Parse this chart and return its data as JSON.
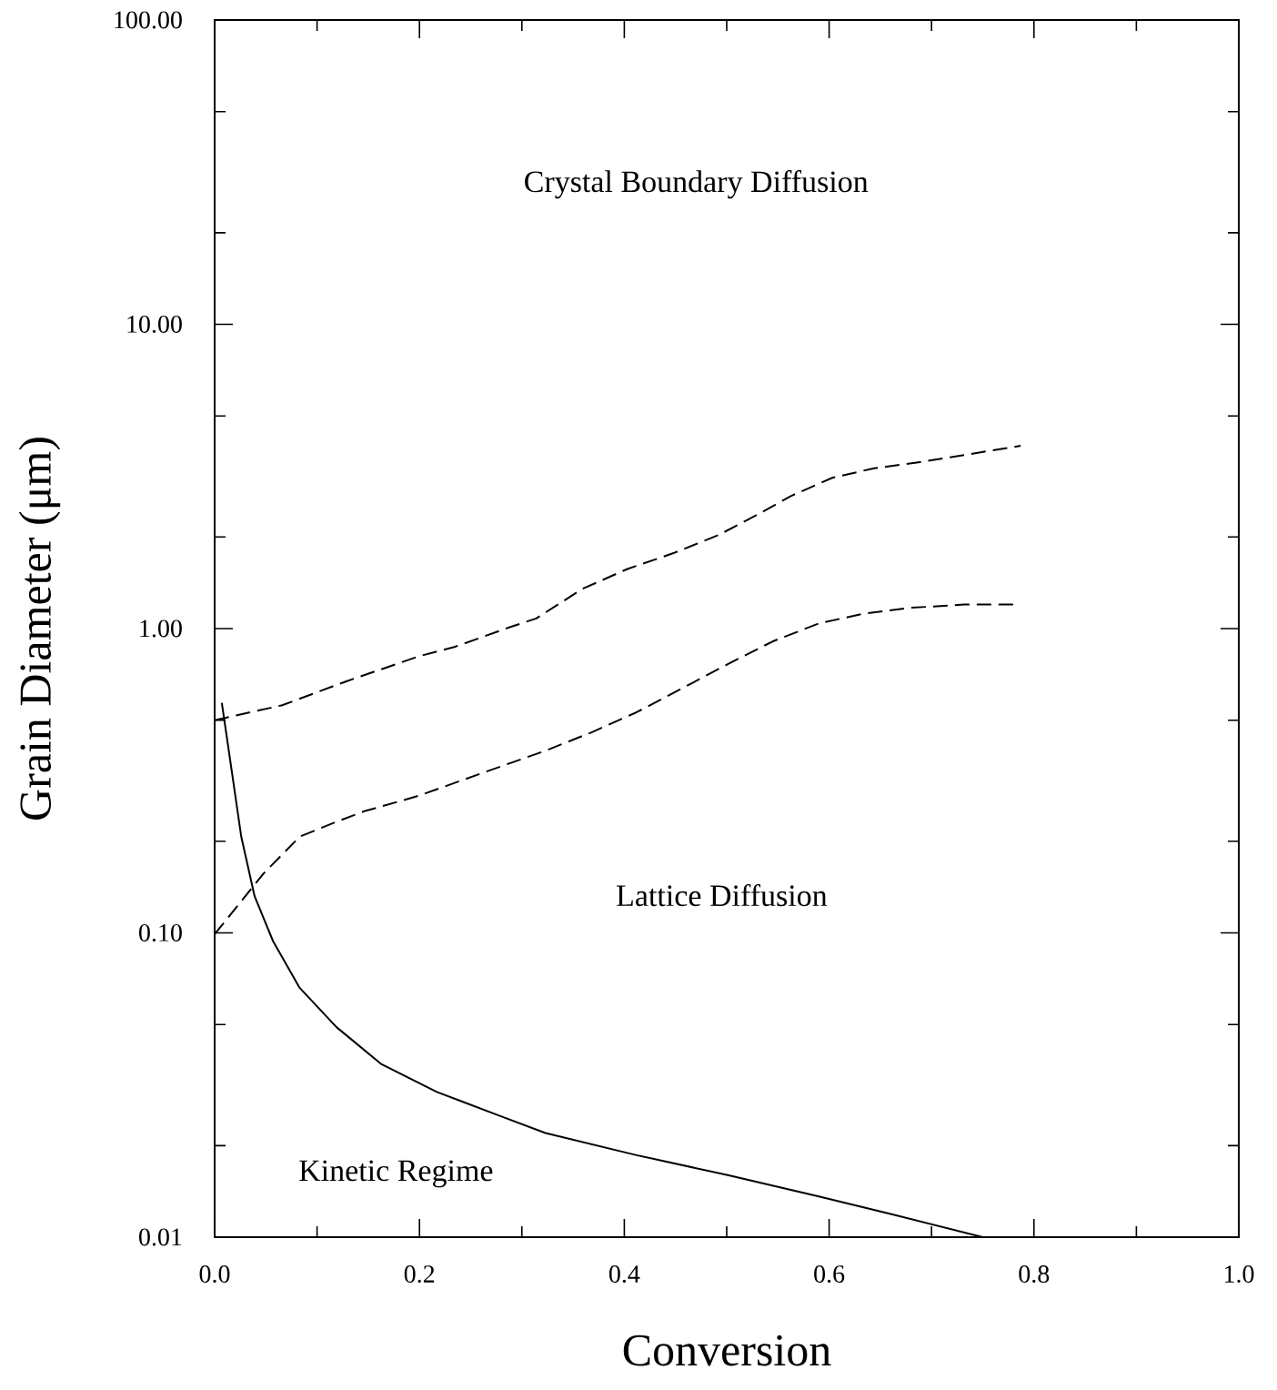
{
  "chart_data": {
    "type": "line",
    "xlabel": "Conversion",
    "ylabel": "Grain Diameter (μm)",
    "log": "y",
    "xlim": [
      0,
      1
    ],
    "ylim": [
      0.01,
      100
    ],
    "xticks": [
      {
        "value": 0,
        "label": "0.0"
      },
      {
        "value": 0.1,
        "label": null
      },
      {
        "value": 0.2,
        "label": "0.2"
      },
      {
        "value": 0.3,
        "label": null
      },
      {
        "value": 0.4,
        "label": "0.4"
      },
      {
        "value": 0.5,
        "label": null
      },
      {
        "value": 0.6,
        "label": "0.6"
      },
      {
        "value": 0.7,
        "label": null
      },
      {
        "value": 0.8,
        "label": "0.8"
      },
      {
        "value": 0.9,
        "label": null
      },
      {
        "value": 1,
        "label": "1.0"
      }
    ],
    "yticks": [
      {
        "value": 0.01,
        "label": "0.01"
      },
      {
        "value": 0.02,
        "label": null
      },
      {
        "value": 0.05,
        "label": null
      },
      {
        "value": 0.1,
        "label": "0.10"
      },
      {
        "value": 0.2,
        "label": null
      },
      {
        "value": 0.5,
        "label": null
      },
      {
        "value": 1,
        "label": "1.00"
      },
      {
        "value": 2,
        "label": null
      },
      {
        "value": 5,
        "label": null
      },
      {
        "value": 10,
        "label": "10.00"
      },
      {
        "value": 20,
        "label": null
      },
      {
        "value": 50,
        "label": null
      },
      {
        "value": 100,
        "label": "100.00"
      }
    ],
    "series": [
      {
        "color": "#000000",
        "line_style": "dashed",
        "x": [
          0,
          0.066,
          0.128,
          0.199,
          0.234,
          0.288,
          0.314,
          0.359,
          0.403,
          0.448,
          0.492,
          0.528,
          0.563,
          0.603,
          0.643,
          0.687,
          0.732,
          0.787
        ],
        "values": [
          0.5,
          0.56,
          0.67,
          0.81,
          0.87,
          1.01,
          1.08,
          1.35,
          1.57,
          1.77,
          2.03,
          2.35,
          2.73,
          3.13,
          3.36,
          3.52,
          3.72,
          3.99
        ]
      },
      {
        "color": "#000000",
        "line_style": "dashed",
        "x": [
          0,
          0.048,
          0.083,
          0.115,
          0.146,
          0.199,
          0.261,
          0.323,
          0.368,
          0.412,
          0.456,
          0.501,
          0.545,
          0.59,
          0.634,
          0.679,
          0.732,
          0.783
        ],
        "values": [
          0.099,
          0.157,
          0.207,
          0.229,
          0.251,
          0.282,
          0.335,
          0.397,
          0.456,
          0.531,
          0.635,
          0.764,
          0.908,
          1.04,
          1.12,
          1.17,
          1.2,
          1.2
        ]
      },
      {
        "color": "#000000",
        "line_style": "solid",
        "x": [
          0.007,
          0.017,
          0.026,
          0.039,
          0.057,
          0.083,
          0.119,
          0.163,
          0.217,
          0.279,
          0.323,
          0.412,
          0.501,
          0.59,
          0.661,
          0.75
        ],
        "values": [
          0.57,
          0.335,
          0.207,
          0.132,
          0.094,
          0.066,
          0.049,
          0.037,
          0.03,
          0.025,
          0.022,
          0.0186,
          0.016,
          0.0136,
          0.0119,
          0.01
        ]
      }
    ],
    "annotations": [
      "Crystal Boundary Diffusion",
      "Lattice Diffusion",
      "Kinetic Regime"
    ]
  }
}
